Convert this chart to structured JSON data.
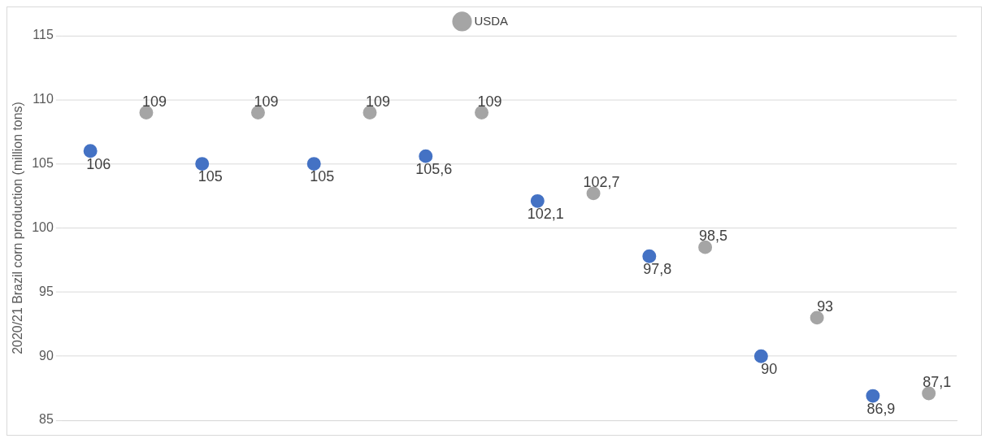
{
  "chart_data": {
    "type": "scatter",
    "ylabel": "2020/21 Brazil corn production (million tons)",
    "categories": [
      null,
      null,
      null,
      null,
      null,
      null,
      null,
      null,
      null,
      null,
      null,
      null,
      null,
      null,
      null,
      null
    ],
    "series": [
      {
        "color": "#4472c4",
        "values": [
          106,
          null,
          105,
          null,
          105,
          null,
          105.6,
          null,
          102.1,
          null,
          97.8,
          null,
          90,
          null,
          86.9,
          null
        ],
        "value_labels": [
          "106",
          null,
          "105",
          null,
          "105",
          null,
          "105,6",
          null,
          "102,1",
          null,
          "97,8",
          null,
          "90",
          null,
          "86,9",
          null
        ]
      },
      {
        "name": "USDA",
        "color": "#a5a5a5",
        "values": [
          null,
          109,
          null,
          109,
          null,
          109,
          null,
          109,
          null,
          102.7,
          null,
          98.5,
          null,
          93,
          null,
          87.1
        ],
        "value_labels": [
          null,
          "109",
          null,
          "109",
          null,
          "109",
          null,
          "109",
          null,
          "102,7",
          null,
          "98,5",
          null,
          "93",
          null,
          "87,1"
        ]
      }
    ],
    "ylim": [
      85,
      115
    ],
    "yticks": [
      85,
      90,
      95,
      100,
      105,
      110,
      115
    ],
    "grid": "y",
    "legend": "top",
    "marker": "circle",
    "tick_labels": "y"
  }
}
